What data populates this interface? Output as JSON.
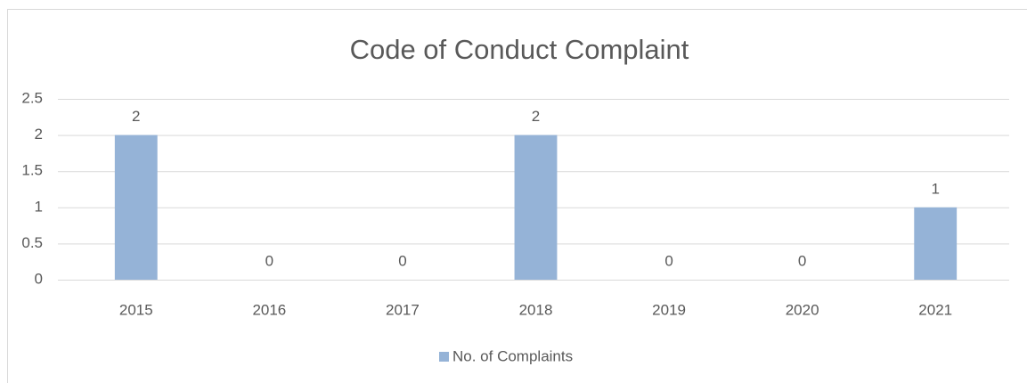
{
  "chart_data": {
    "type": "bar",
    "title": "Code of Conduct Complaint",
    "categories": [
      "2015",
      "2016",
      "2017",
      "2018",
      "2019",
      "2020",
      "2021"
    ],
    "series": [
      {
        "name": "No. of Complaints",
        "color": "#95b3d7",
        "values": [
          2,
          0,
          0,
          2,
          0,
          0,
          1
        ]
      }
    ],
    "ylim": [
      0,
      2.5
    ],
    "yticks": [
      0,
      0.5,
      1,
      1.5,
      2,
      2.5
    ],
    "grid": true,
    "legend": "bottom",
    "data_labels": true
  }
}
